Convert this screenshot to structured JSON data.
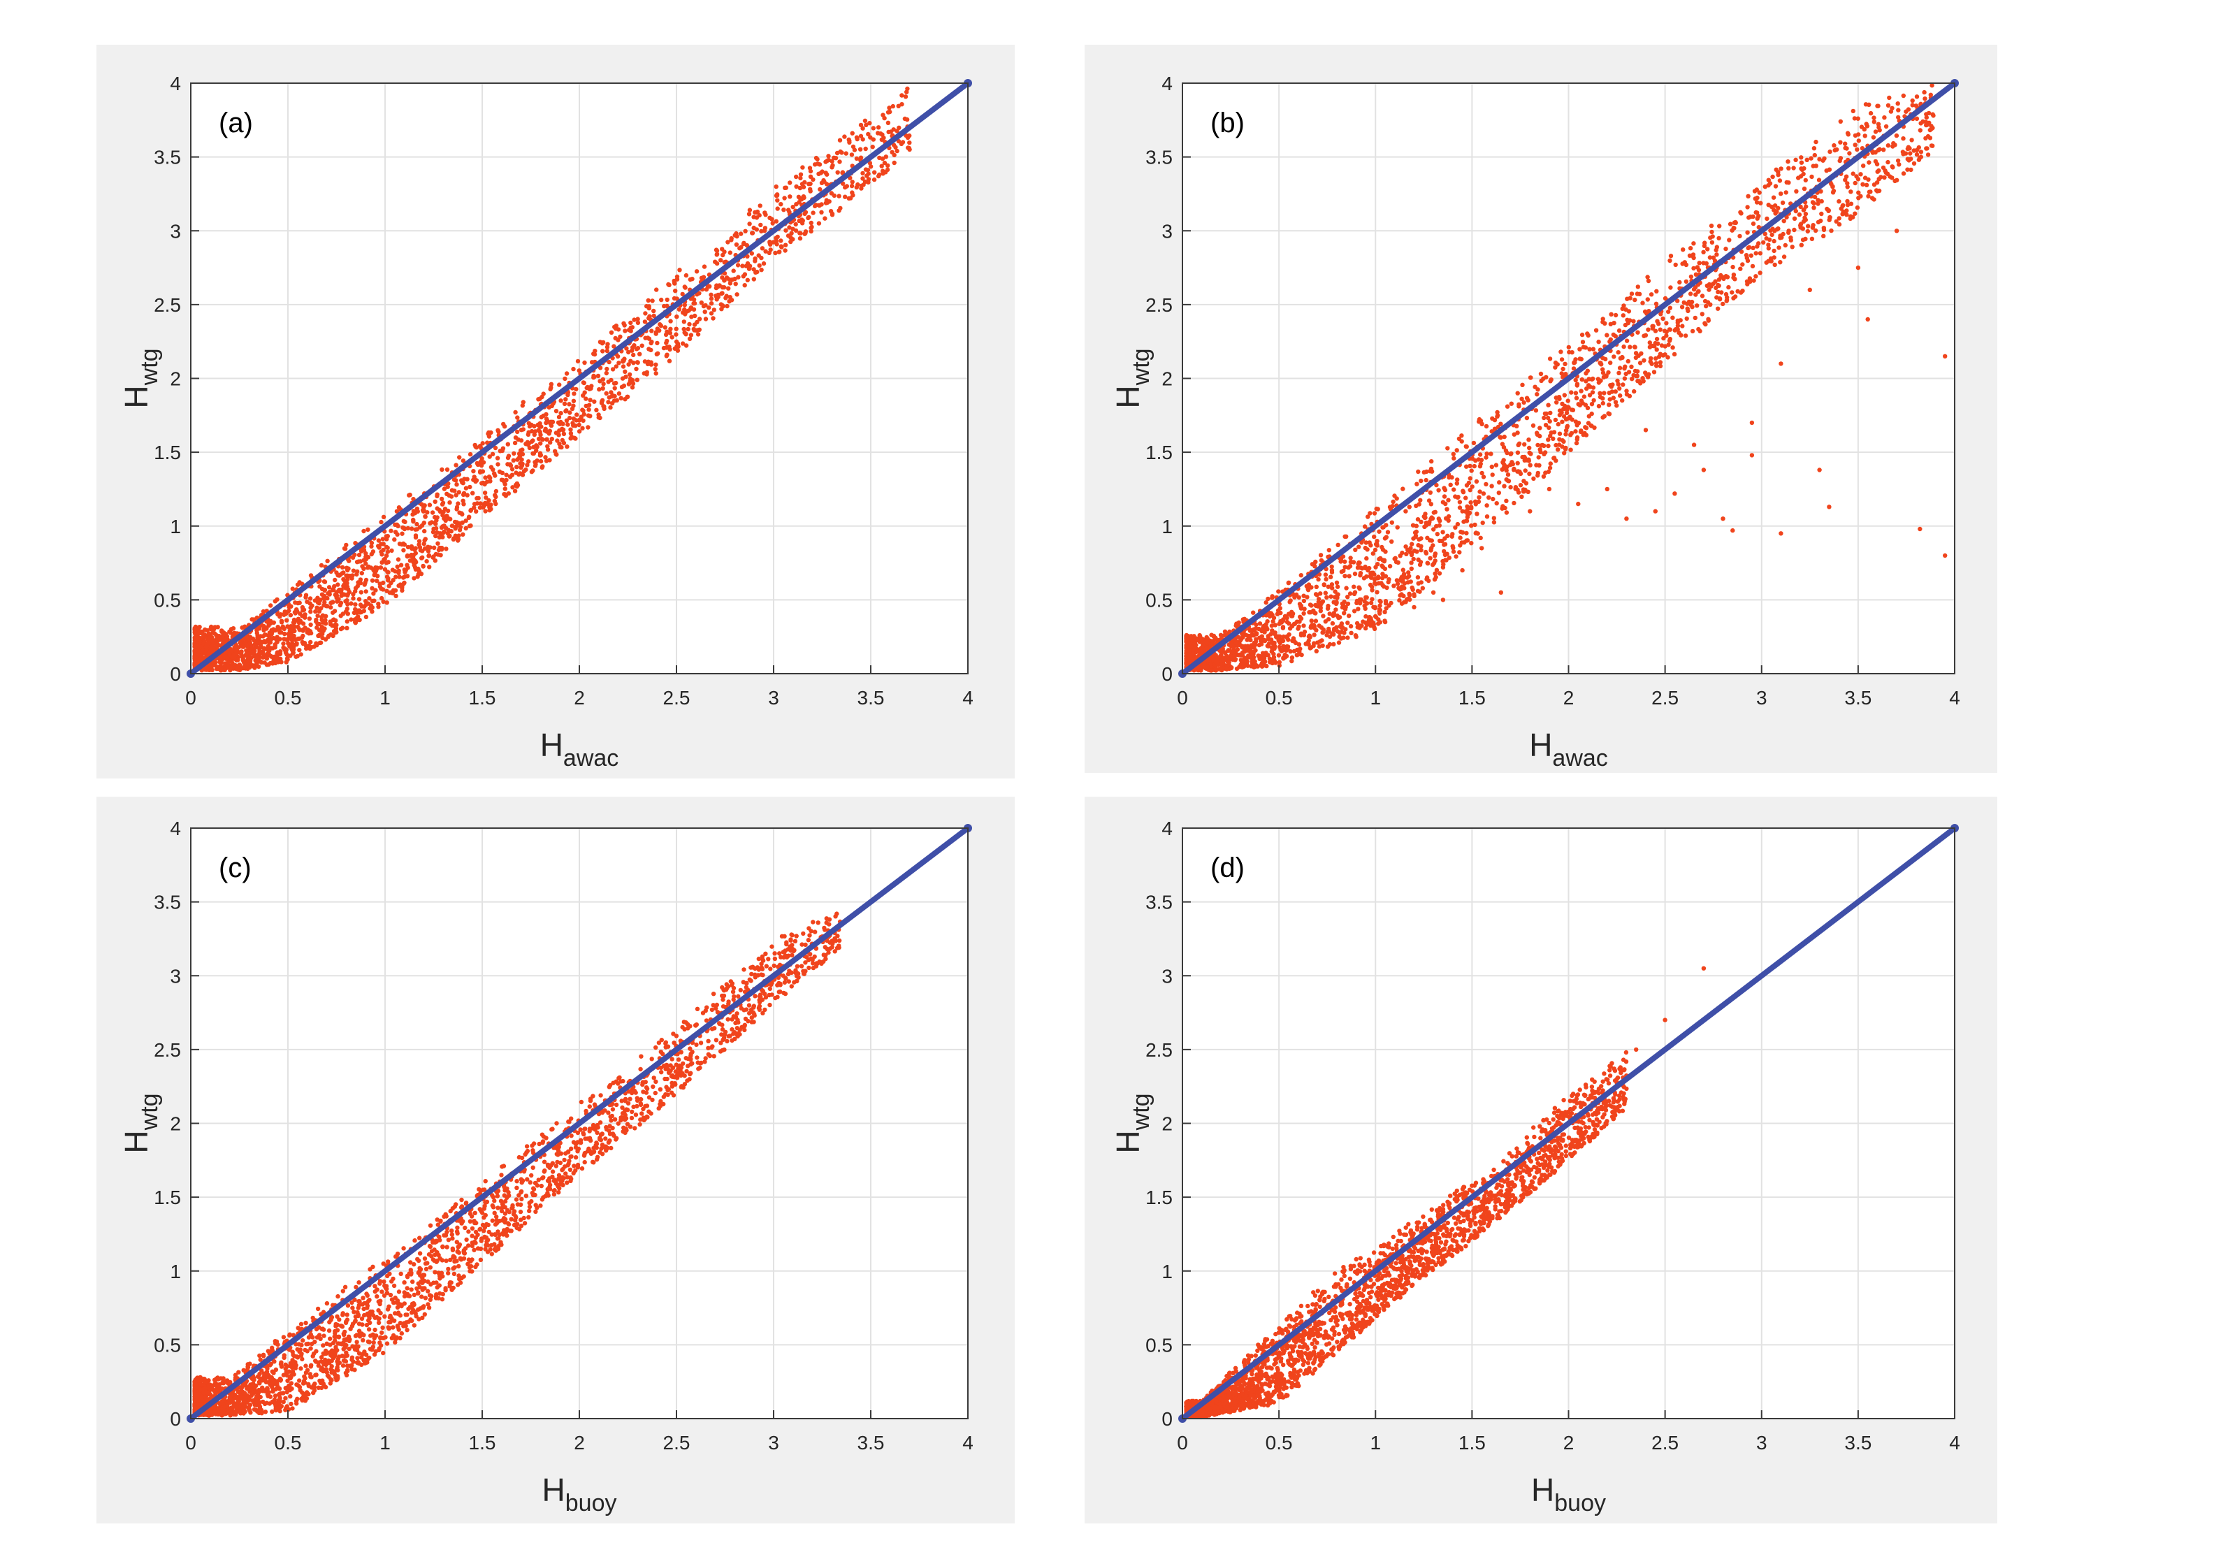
{
  "colors": {
    "points": "#f0441c",
    "line": "#3f4fa8",
    "panel_bg": "#f0f0f0",
    "plot_bg": "#ffffff",
    "grid": "#e2e2e2",
    "axis": "#3a3a3a"
  },
  "chart_data": [
    {
      "type": "scatter",
      "panel_label": "(a)",
      "xlabel": {
        "main": "H",
        "sub": "awac"
      },
      "ylabel": {
        "main": "H",
        "sub": "wtg"
      },
      "xlim": [
        0,
        4
      ],
      "ylim": [
        0,
        4
      ],
      "xticks": [
        "0",
        "0.5",
        "1",
        "1.5",
        "2",
        "2.5",
        "3",
        "3.5",
        "4"
      ],
      "yticks": [
        "0",
        "0.5",
        "1",
        "1.5",
        "2",
        "2.5",
        "3",
        "3.5",
        "4"
      ],
      "grid": true,
      "reference_line": {
        "x": [
          0,
          4
        ],
        "y": [
          0,
          4
        ]
      },
      "cloud": [
        {
          "x": 0.25,
          "y_lo": 0.02,
          "y_hi": 0.32
        },
        {
          "x": 0.5,
          "y_lo": 0.08,
          "y_hi": 0.56
        },
        {
          "x": 1.0,
          "y_lo": 0.45,
          "y_hi": 1.08
        },
        {
          "x": 1.5,
          "y_lo": 1.05,
          "y_hi": 1.62
        },
        {
          "x": 2.0,
          "y_lo": 1.6,
          "y_hi": 2.15
        },
        {
          "x": 2.5,
          "y_lo": 2.15,
          "y_hi": 2.72
        },
        {
          "x": 3.0,
          "y_lo": 2.8,
          "y_hi": 3.3
        },
        {
          "x": 3.5,
          "y_lo": 3.3,
          "y_hi": 3.78
        },
        {
          "x": 3.7,
          "y_lo": 3.55,
          "y_hi": 4.0
        }
      ],
      "outliers": []
    },
    {
      "type": "scatter",
      "panel_label": "(b)",
      "xlabel": {
        "main": "H",
        "sub": "awac"
      },
      "ylabel": {
        "main": "H",
        "sub": "wtg"
      },
      "xlim": [
        0,
        4
      ],
      "ylim": [
        0,
        4
      ],
      "xticks": [
        "0",
        "0.5",
        "1",
        "1.5",
        "2",
        "2.5",
        "3",
        "3.5",
        "4"
      ],
      "yticks": [
        "0",
        "0.5",
        "1",
        "1.5",
        "2",
        "2.5",
        "3",
        "3.5",
        "4"
      ],
      "grid": true,
      "reference_line": {
        "x": [
          0,
          4
        ],
        "y": [
          0,
          4
        ]
      },
      "cloud": [
        {
          "x": 0.2,
          "y_lo": 0.02,
          "y_hi": 0.27
        },
        {
          "x": 0.5,
          "y_lo": 0.05,
          "y_hi": 0.57
        },
        {
          "x": 1.0,
          "y_lo": 0.3,
          "y_hi": 1.13
        },
        {
          "x": 1.5,
          "y_lo": 0.85,
          "y_hi": 1.68
        },
        {
          "x": 2.0,
          "y_lo": 1.5,
          "y_hi": 2.25
        },
        {
          "x": 2.5,
          "y_lo": 2.1,
          "y_hi": 2.8
        },
        {
          "x": 3.0,
          "y_lo": 2.7,
          "y_hi": 3.35
        },
        {
          "x": 3.5,
          "y_lo": 3.1,
          "y_hi": 3.85
        },
        {
          "x": 3.9,
          "y_lo": 3.55,
          "y_hi": 4.0
        }
      ],
      "outliers": [
        [
          3.95,
          2.15
        ],
        [
          3.95,
          0.8
        ],
        [
          3.82,
          0.98
        ],
        [
          3.35,
          1.13
        ],
        [
          3.3,
          1.38
        ],
        [
          3.1,
          0.95
        ],
        [
          2.95,
          1.48
        ],
        [
          2.85,
          0.97
        ],
        [
          2.8,
          1.05
        ],
        [
          2.7,
          1.38
        ],
        [
          2.65,
          1.55
        ],
        [
          2.55,
          1.22
        ],
        [
          2.45,
          1.1
        ],
        [
          2.3,
          1.05
        ],
        [
          2.2,
          1.25
        ],
        [
          2.95,
          1.7
        ],
        [
          3.1,
          2.1
        ],
        [
          3.5,
          2.75
        ],
        [
          3.55,
          2.4
        ],
        [
          2.05,
          1.15
        ],
        [
          1.8,
          1.1
        ],
        [
          1.65,
          0.55
        ],
        [
          1.55,
          0.85
        ],
        [
          1.45,
          0.7
        ],
        [
          1.3,
          0.55
        ],
        [
          1.2,
          0.45
        ],
        [
          1.05,
          0.35
        ],
        [
          1.35,
          0.5
        ],
        [
          0.9,
          0.25
        ],
        [
          1.9,
          1.25
        ],
        [
          2.4,
          1.65
        ],
        [
          3.25,
          2.6
        ],
        [
          3.7,
          3.0
        ]
      ]
    },
    {
      "type": "scatter",
      "panel_label": "(c)",
      "xlabel": {
        "main": "H",
        "sub": "buoy"
      },
      "ylabel": {
        "main": "H",
        "sub": "wtg"
      },
      "xlim": [
        0,
        4
      ],
      "ylim": [
        0,
        4
      ],
      "xticks": [
        "0",
        "0.5",
        "1",
        "1.5",
        "2",
        "2.5",
        "3",
        "3.5",
        "4"
      ],
      "yticks": [
        "0",
        "0.5",
        "1",
        "1.5",
        "2",
        "2.5",
        "3",
        "3.5",
        "4"
      ],
      "grid": true,
      "reference_line": {
        "x": [
          0,
          4
        ],
        "y": [
          0,
          4
        ]
      },
      "cloud": [
        {
          "x": 0.2,
          "y_lo": 0.02,
          "y_hi": 0.28
        },
        {
          "x": 0.5,
          "y_lo": 0.05,
          "y_hi": 0.6
        },
        {
          "x": 1.0,
          "y_lo": 0.45,
          "y_hi": 1.1
        },
        {
          "x": 1.5,
          "y_lo": 1.05,
          "y_hi": 1.6
        },
        {
          "x": 2.0,
          "y_lo": 1.65,
          "y_hi": 2.15
        },
        {
          "x": 2.5,
          "y_lo": 2.2,
          "y_hi": 2.65
        },
        {
          "x": 3.0,
          "y_lo": 2.8,
          "y_hi": 3.25
        },
        {
          "x": 3.35,
          "y_lo": 3.2,
          "y_hi": 3.45
        }
      ],
      "outliers": []
    },
    {
      "type": "scatter",
      "panel_label": "(d)",
      "xlabel": {
        "main": "H",
        "sub": "buoy"
      },
      "ylabel": {
        "main": "H",
        "sub": "wtg"
      },
      "xlim": [
        0,
        4
      ],
      "ylim": [
        0,
        4
      ],
      "xticks": [
        "0",
        "0.5",
        "1",
        "1.5",
        "2",
        "2.5",
        "3",
        "3.5",
        "4"
      ],
      "yticks": [
        "0",
        "0.5",
        "1",
        "1.5",
        "2",
        "2.5",
        "3",
        "3.5",
        "4"
      ],
      "grid": true,
      "reference_line": {
        "x": [
          0,
          4
        ],
        "y": [
          0,
          4
        ]
      },
      "cloud": [
        {
          "x": 0.1,
          "y_lo": 0.01,
          "y_hi": 0.12
        },
        {
          "x": 0.5,
          "y_lo": 0.1,
          "y_hi": 0.65
        },
        {
          "x": 0.8,
          "y_lo": 0.45,
          "y_hi": 1.0
        },
        {
          "x": 1.2,
          "y_lo": 0.9,
          "y_hi": 1.35
        },
        {
          "x": 1.6,
          "y_lo": 1.3,
          "y_hi": 1.7
        },
        {
          "x": 2.0,
          "y_lo": 1.75,
          "y_hi": 2.2
        },
        {
          "x": 2.3,
          "y_lo": 2.1,
          "y_hi": 2.5
        }
      ],
      "outliers": [
        [
          2.7,
          3.05
        ],
        [
          2.5,
          2.7
        ],
        [
          2.35,
          2.5
        ],
        [
          2.25,
          2.3
        ]
      ]
    }
  ]
}
